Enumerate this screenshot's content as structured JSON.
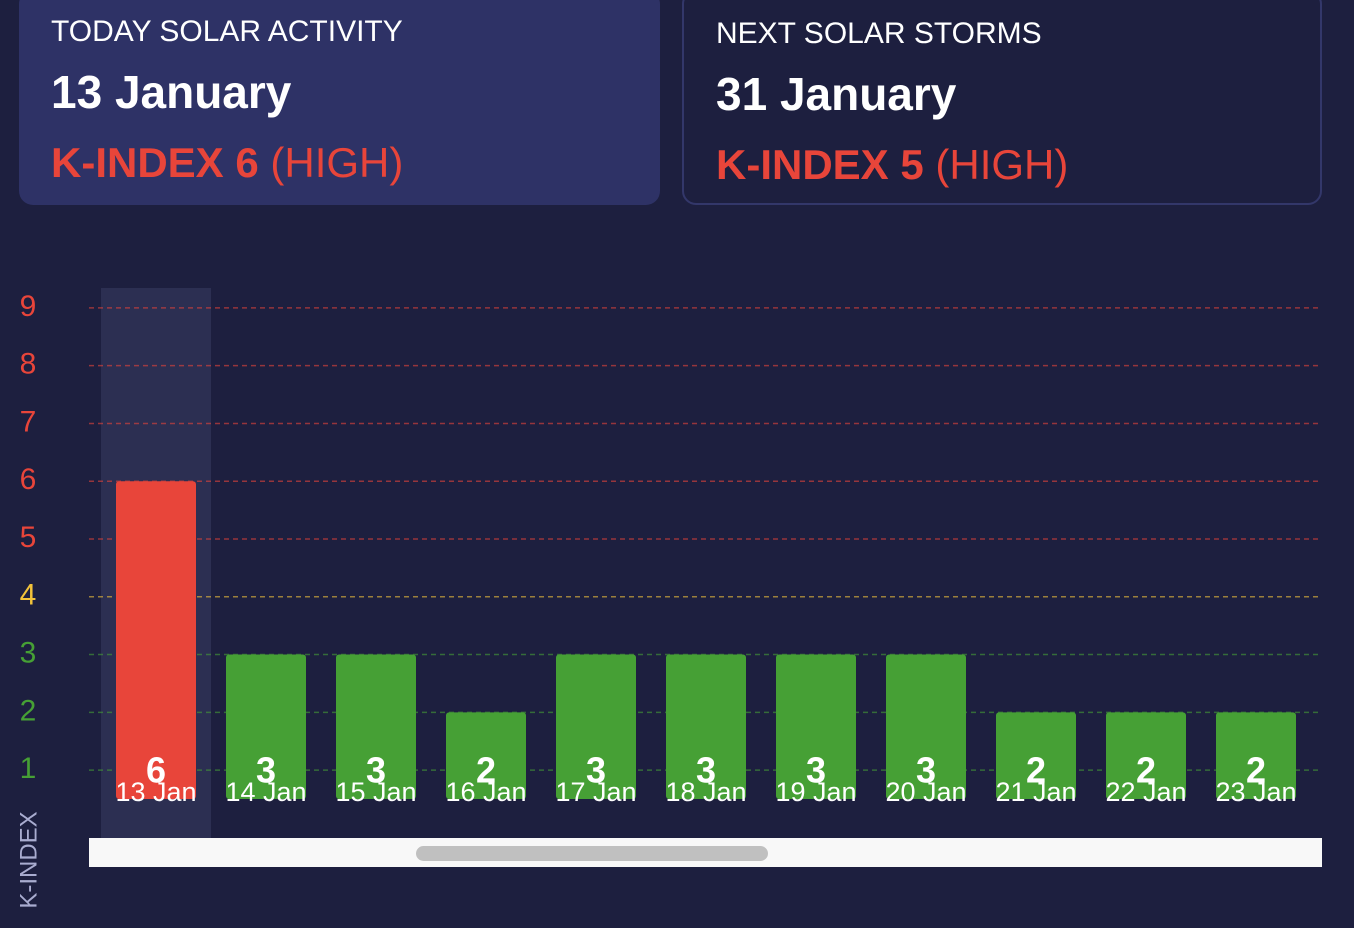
{
  "cards": [
    {
      "title": "TODAY SOLAR ACTIVITY",
      "date": "13 January",
      "index": "K-INDEX 6",
      "level": "(HIGH)"
    },
    {
      "title": "NEXT SOLAR STORMS",
      "date": "31 January",
      "index": "K-INDEX 5",
      "level": "(HIGH)"
    }
  ],
  "chart_data": {
    "type": "bar",
    "y_label": "K-INDEX",
    "categories": [
      "13 Jan",
      "14 Jan",
      "15 Jan",
      "16 Jan",
      "17 Jan",
      "18 Jan",
      "19 Jan",
      "20 Jan",
      "21 Jan",
      "22 Jan",
      "23 Jan"
    ],
    "values": [
      6,
      3,
      3,
      2,
      3,
      3,
      3,
      3,
      2,
      2,
      2
    ],
    "colors": [
      "#e8453a",
      "#46a035",
      "#46a035",
      "#46a035",
      "#46a035",
      "#46a035",
      "#46a035",
      "#46a035",
      "#46a035",
      "#46a035",
      "#46a035"
    ],
    "ylim": [
      0.5,
      9.5
    ],
    "yticks": [
      1,
      2,
      3,
      4,
      5,
      6,
      7,
      8,
      9
    ],
    "ytick_colors": [
      "#46a035",
      "#46a035",
      "#46a035",
      "#f2c23a",
      "#e8453a",
      "#e8453a",
      "#e8453a",
      "#e8453a",
      "#e8453a"
    ],
    "grid": true
  }
}
